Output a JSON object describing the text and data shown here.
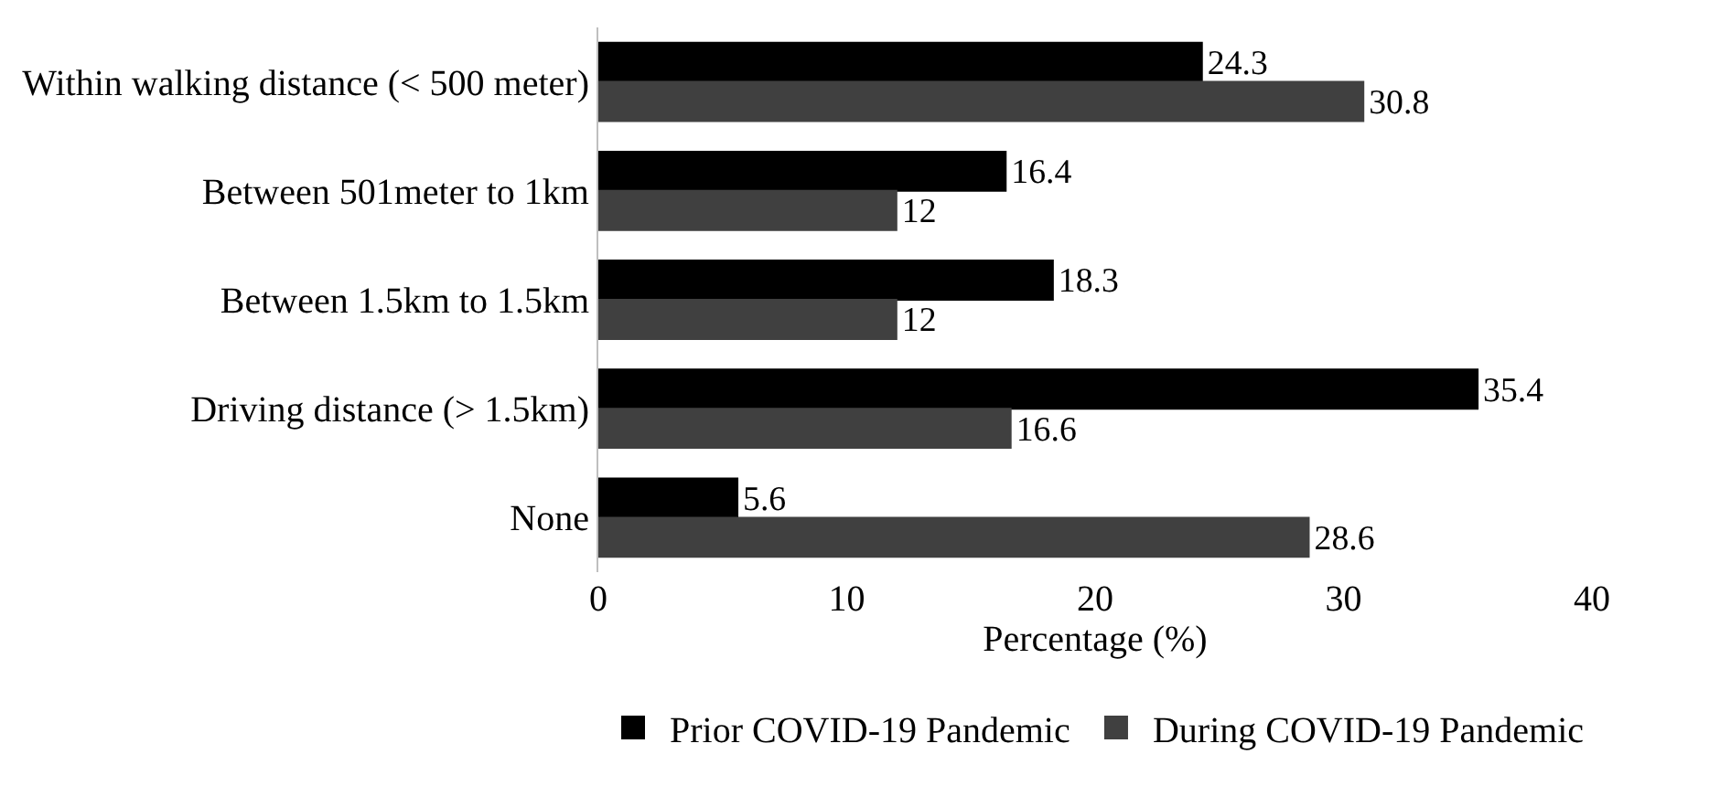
{
  "chart_data": {
    "type": "bar",
    "orientation": "horizontal",
    "categories": [
      "Within walking distance (< 500 meter)",
      "Between 501meter to 1km",
      "Between 1.5km to 1.5km",
      "Driving distance (> 1.5km)",
      "None"
    ],
    "series": [
      {
        "name": "Prior COVID-19 Pandemic",
        "color": "#000000",
        "values": [
          24.3,
          16.4,
          18.3,
          35.4,
          5.6
        ]
      },
      {
        "name": "During COVID-19 Pandemic",
        "color": "#404040",
        "values": [
          30.8,
          12,
          12,
          16.6,
          28.6
        ]
      }
    ],
    "xlabel": "Percentage (%)",
    "xlim": [
      0,
      40
    ],
    "xticks": [
      0,
      10,
      20,
      30,
      40
    ],
    "data_labels": true,
    "grid": false,
    "legend": "bottom"
  }
}
